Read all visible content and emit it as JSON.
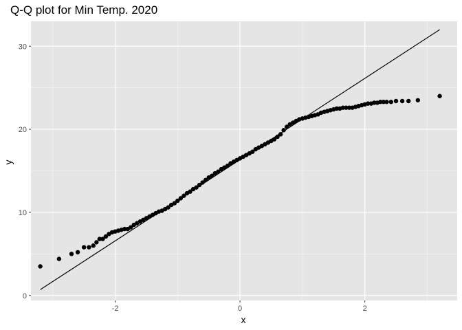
{
  "chart_data": {
    "type": "scatter",
    "title": "Q-Q plot for Min Temp. 2020",
    "xlabel": "x",
    "ylabel": "y",
    "xlim": [
      -3.35,
      3.48
    ],
    "ylim": [
      -0.6,
      33.0
    ],
    "x_ticks": [
      -2,
      0,
      2
    ],
    "y_ticks": [
      0,
      10,
      20,
      30
    ],
    "grid": true,
    "legend": "none",
    "reference_line": {
      "x": [
        -3.2,
        3.2
      ],
      "y": [
        0.7,
        32.0
      ]
    },
    "points": [
      [
        -3.2,
        3.5
      ],
      [
        -2.9,
        4.4
      ],
      [
        -2.7,
        5.0
      ],
      [
        -2.6,
        5.2
      ],
      [
        -2.5,
        5.8
      ],
      [
        -2.42,
        5.8
      ],
      [
        -2.35,
        6.0
      ],
      [
        -2.3,
        6.4
      ],
      [
        -2.25,
        6.8
      ],
      [
        -2.2,
        6.8
      ],
      [
        -2.15,
        7.1
      ],
      [
        -2.1,
        7.4
      ],
      [
        -2.05,
        7.6
      ],
      [
        -2.0,
        7.7
      ],
      [
        -1.95,
        7.8
      ],
      [
        -1.9,
        7.9
      ],
      [
        -1.85,
        8.0
      ],
      [
        -1.8,
        8.0
      ],
      [
        -1.75,
        8.2
      ],
      [
        -1.7,
        8.5
      ],
      [
        -1.65,
        8.7
      ],
      [
        -1.6,
        8.9
      ],
      [
        -1.55,
        9.1
      ],
      [
        -1.5,
        9.3
      ],
      [
        -1.45,
        9.5
      ],
      [
        -1.4,
        9.7
      ],
      [
        -1.35,
        9.9
      ],
      [
        -1.3,
        10.1
      ],
      [
        -1.25,
        10.2
      ],
      [
        -1.2,
        10.4
      ],
      [
        -1.15,
        10.6
      ],
      [
        -1.1,
        10.9
      ],
      [
        -1.05,
        11.1
      ],
      [
        -1.0,
        11.4
      ],
      [
        -0.95,
        11.7
      ],
      [
        -0.9,
        12.0
      ],
      [
        -0.85,
        12.3
      ],
      [
        -0.8,
        12.5
      ],
      [
        -0.75,
        12.8
      ],
      [
        -0.7,
        13.0
      ],
      [
        -0.65,
        13.3
      ],
      [
        -0.6,
        13.6
      ],
      [
        -0.55,
        13.9
      ],
      [
        -0.5,
        14.2
      ],
      [
        -0.45,
        14.4
      ],
      [
        -0.4,
        14.7
      ],
      [
        -0.35,
        14.9
      ],
      [
        -0.3,
        15.2
      ],
      [
        -0.25,
        15.4
      ],
      [
        -0.2,
        15.6
      ],
      [
        -0.15,
        15.9
      ],
      [
        -0.1,
        16.1
      ],
      [
        -0.05,
        16.3
      ],
      [
        0.0,
        16.5
      ],
      [
        0.05,
        16.7
      ],
      [
        0.1,
        16.9
      ],
      [
        0.15,
        17.1
      ],
      [
        0.2,
        17.3
      ],
      [
        0.25,
        17.6
      ],
      [
        0.3,
        17.8
      ],
      [
        0.35,
        18.0
      ],
      [
        0.4,
        18.2
      ],
      [
        0.45,
        18.4
      ],
      [
        0.5,
        18.6
      ],
      [
        0.55,
        18.8
      ],
      [
        0.6,
        19.1
      ],
      [
        0.65,
        19.4
      ],
      [
        0.7,
        19.9
      ],
      [
        0.75,
        20.3
      ],
      [
        0.8,
        20.6
      ],
      [
        0.85,
        20.8
      ],
      [
        0.9,
        21.0
      ],
      [
        0.95,
        21.2
      ],
      [
        1.0,
        21.3
      ],
      [
        1.05,
        21.4
      ],
      [
        1.1,
        21.5
      ],
      [
        1.15,
        21.6
      ],
      [
        1.2,
        21.7
      ],
      [
        1.25,
        21.8
      ],
      [
        1.3,
        22.0
      ],
      [
        1.35,
        22.1
      ],
      [
        1.4,
        22.2
      ],
      [
        1.45,
        22.3
      ],
      [
        1.5,
        22.4
      ],
      [
        1.55,
        22.5
      ],
      [
        1.6,
        22.5
      ],
      [
        1.65,
        22.6
      ],
      [
        1.7,
        22.6
      ],
      [
        1.75,
        22.6
      ],
      [
        1.8,
        22.6
      ],
      [
        1.85,
        22.7
      ],
      [
        1.9,
        22.8
      ],
      [
        1.95,
        22.9
      ],
      [
        2.0,
        23.0
      ],
      [
        2.05,
        23.1
      ],
      [
        2.1,
        23.1
      ],
      [
        2.15,
        23.2
      ],
      [
        2.2,
        23.2
      ],
      [
        2.25,
        23.3
      ],
      [
        2.3,
        23.3
      ],
      [
        2.35,
        23.3
      ],
      [
        2.42,
        23.3
      ],
      [
        2.5,
        23.4
      ],
      [
        2.6,
        23.4
      ],
      [
        2.7,
        23.4
      ],
      [
        2.85,
        23.5
      ],
      [
        3.2,
        24.0
      ]
    ],
    "colors": {
      "panel": "#e5e5e5",
      "grid_major": "#ffffff",
      "points": "#000000",
      "line": "#000000",
      "tick_text": "#4d4d4d"
    }
  }
}
